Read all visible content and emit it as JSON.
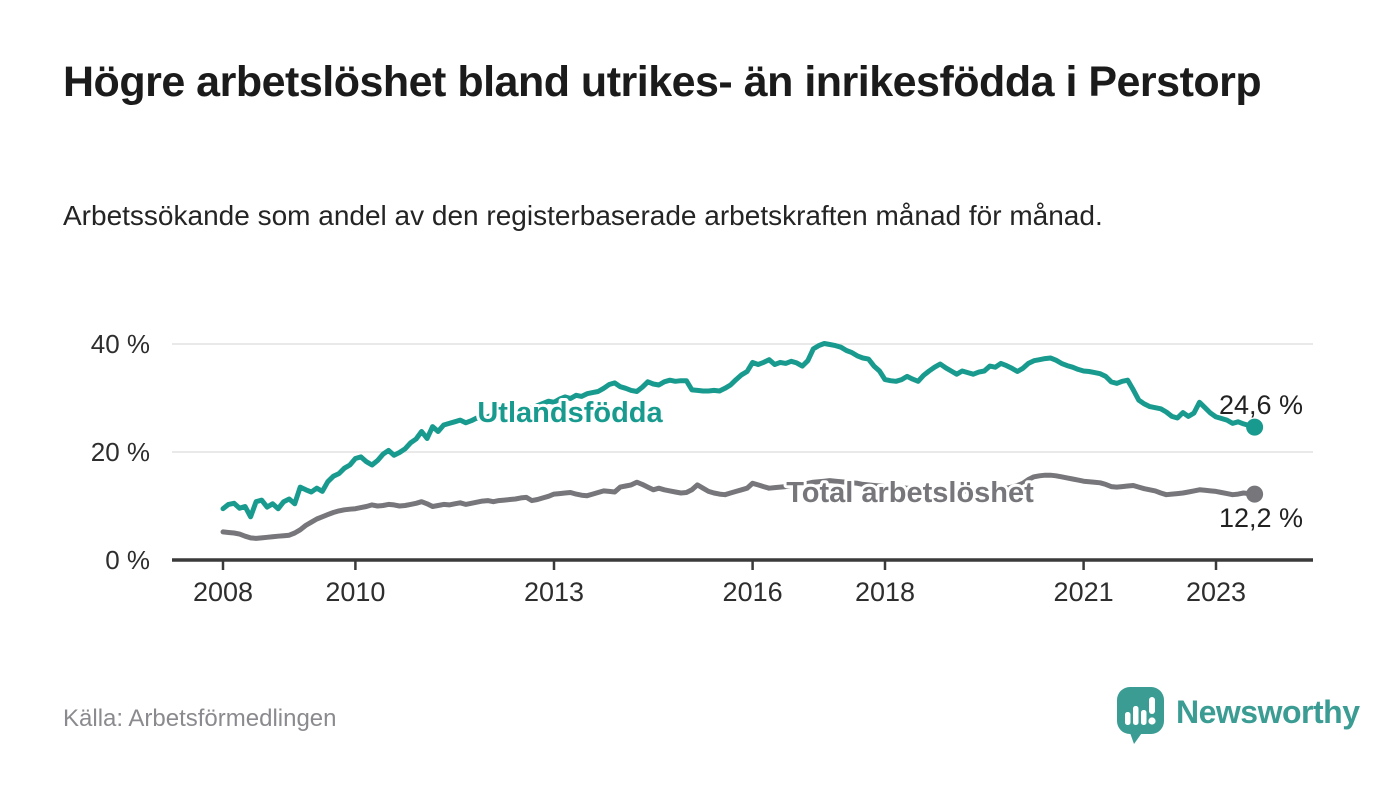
{
  "header": {
    "title": "Högre arbetslöshet bland utrikes- än inrikesfödda i Perstorp",
    "subtitle": "Arbetssökande som andel av den registerbaserade arbetskraften månad för månad."
  },
  "footer": {
    "source": "Källa: Arbetsförmedlingen",
    "logo_text": "Newsworthy"
  },
  "colors": {
    "foreign_born_line": "#189b8e",
    "total_line": "#77767b",
    "axis": "#3a3a3a",
    "gridline": "#e2e2e2",
    "tick_label": "#2e2e2e",
    "end_label": "#222222",
    "source_text": "#8b8a8f",
    "logo_teal": "#3a9c93",
    "background": "#ffffff"
  },
  "chart_data": {
    "type": "line",
    "title": "Högre arbetslöshet bland utrikes- än inrikesfödda i Perstorp",
    "xlabel": "",
    "ylabel": "",
    "grid": "horizontal-only",
    "legend_position": "labels-on-lines",
    "x_axis": {
      "tick_years": [
        2008,
        2010,
        2013,
        2016,
        2018,
        2021,
        2023
      ],
      "tick_labels": [
        "2008",
        "2010",
        "2013",
        "2016",
        "2018",
        "2021",
        "2023"
      ],
      "range_years": [
        2007.25,
        2024.5
      ]
    },
    "y_axis": {
      "ticks": [
        0,
        20,
        40
      ],
      "tick_labels": [
        "0 %",
        "20 %",
        "40 %"
      ],
      "range": [
        0,
        42.5
      ],
      "unit": "%"
    },
    "x_start_year": 2008,
    "x_step_months": 1,
    "series": [
      {
        "name": "Utlandsfödda",
        "color": "#189b8e",
        "end_label": "24,6 %",
        "end_value": 24.6,
        "values": [
          9.5,
          10.3,
          10.5,
          9.6,
          9.9,
          8.0,
          10.8,
          11.1,
          9.8,
          10.4,
          9.5,
          10.8,
          11.3,
          10.4,
          13.5,
          13.0,
          12.6,
          13.3,
          12.7,
          14.5,
          15.5,
          16.0,
          17.0,
          17.6,
          18.8,
          19.1,
          18.2,
          17.6,
          18.4,
          19.6,
          20.3,
          19.4,
          19.9,
          20.6,
          21.7,
          22.4,
          23.8,
          22.5,
          24.7,
          23.8,
          25.0,
          25.3,
          25.6,
          25.9,
          25.4,
          25.8,
          26.3,
          26.0,
          26.5,
          27.0,
          26.6,
          27.2,
          27.5,
          27.3,
          27.8,
          28.3,
          28.0,
          28.6,
          29.0,
          29.4,
          29.2,
          29.8,
          30.2,
          29.9,
          30.5,
          30.3,
          30.8,
          31.0,
          31.2,
          31.8,
          32.5,
          32.8,
          32.1,
          31.8,
          31.4,
          31.2,
          32.0,
          33.0,
          32.6,
          32.4,
          33.0,
          33.3,
          33.1,
          33.2,
          33.2,
          31.5,
          31.4,
          31.3,
          31.3,
          31.4,
          31.3,
          31.8,
          32.4,
          33.4,
          34.3,
          34.9,
          36.6,
          36.2,
          36.6,
          37.1,
          36.2,
          36.6,
          36.4,
          36.8,
          36.5,
          35.9,
          36.9,
          39.1,
          39.7,
          40.1,
          39.9,
          39.7,
          39.4,
          38.8,
          38.4,
          37.8,
          37.4,
          37.2,
          35.9,
          35.0,
          33.4,
          33.2,
          33.1,
          33.4,
          34.0,
          33.5,
          33.1,
          34.2,
          35.0,
          35.7,
          36.3,
          35.6,
          35.0,
          34.4,
          35.0,
          34.7,
          34.4,
          34.8,
          35.0,
          35.9,
          35.7,
          36.4,
          36.0,
          35.5,
          34.9,
          35.5,
          36.4,
          36.9,
          37.1,
          37.3,
          37.4,
          37.0,
          36.4,
          36.0,
          35.7,
          35.3,
          35.0,
          34.9,
          34.7,
          34.5,
          34.0,
          33.0,
          32.7,
          33.1,
          33.3,
          31.5,
          29.6,
          28.9,
          28.4,
          28.2,
          28.0,
          27.4,
          26.6,
          26.3,
          27.3,
          26.6,
          27.2,
          29.2,
          28.2,
          27.2,
          26.5,
          26.2,
          25.9,
          25.3,
          25.6,
          25.2,
          24.9,
          24.6
        ]
      },
      {
        "name": "Total arbetslöshet",
        "color": "#77767b",
        "end_label": "12,2 %",
        "end_value": 12.2,
        "values": [
          5.2,
          5.1,
          5.0,
          4.8,
          4.4,
          4.1,
          4.0,
          4.1,
          4.2,
          4.3,
          4.4,
          4.5,
          4.6,
          5.0,
          5.6,
          6.4,
          7.0,
          7.6,
          8.0,
          8.4,
          8.8,
          9.1,
          9.3,
          9.4,
          9.5,
          9.7,
          9.9,
          10.2,
          10.0,
          10.1,
          10.3,
          10.2,
          10.0,
          10.1,
          10.3,
          10.5,
          10.8,
          10.4,
          9.9,
          10.1,
          10.3,
          10.2,
          10.4,
          10.6,
          10.3,
          10.5,
          10.7,
          10.9,
          11.0,
          10.8,
          11.0,
          11.1,
          11.2,
          11.3,
          11.5,
          11.6,
          11.0,
          11.2,
          11.5,
          11.8,
          12.2,
          12.3,
          12.4,
          12.5,
          12.2,
          12.0,
          11.9,
          12.2,
          12.5,
          12.8,
          12.7,
          12.6,
          13.5,
          13.7,
          13.9,
          14.4,
          14.0,
          13.5,
          13.0,
          13.3,
          13.0,
          12.8,
          12.6,
          12.4,
          12.5,
          13.0,
          13.9,
          13.3,
          12.7,
          12.4,
          12.2,
          12.1,
          12.4,
          12.7,
          13.0,
          13.3,
          14.2,
          13.9,
          13.6,
          13.3,
          13.4,
          13.5,
          13.6,
          13.8,
          13.9,
          14.0,
          14.2,
          14.4,
          14.5,
          14.6,
          14.7,
          14.6,
          14.5,
          14.4,
          14.3,
          14.2,
          14.0,
          13.9,
          13.8,
          13.7,
          13.6,
          13.5,
          13.4,
          13.4,
          13.3,
          13.3,
          13.2,
          13.2,
          13.1,
          13.1,
          13.0,
          13.0,
          12.9,
          12.9,
          12.8,
          12.8,
          12.8,
          12.9,
          12.9,
          13.0,
          13.1,
          13.2,
          13.3,
          13.5,
          13.8,
          14.2,
          14.9,
          15.4,
          15.6,
          15.7,
          15.7,
          15.6,
          15.4,
          15.2,
          15.0,
          14.8,
          14.6,
          14.5,
          14.4,
          14.3,
          14.0,
          13.6,
          13.5,
          13.6,
          13.7,
          13.8,
          13.5,
          13.2,
          13.0,
          12.8,
          12.4,
          12.1,
          12.2,
          12.3,
          12.4,
          12.6,
          12.8,
          13.0,
          12.9,
          12.8,
          12.7,
          12.5,
          12.3,
          12.1,
          12.2,
          12.4,
          12.3,
          12.2
        ]
      }
    ]
  }
}
